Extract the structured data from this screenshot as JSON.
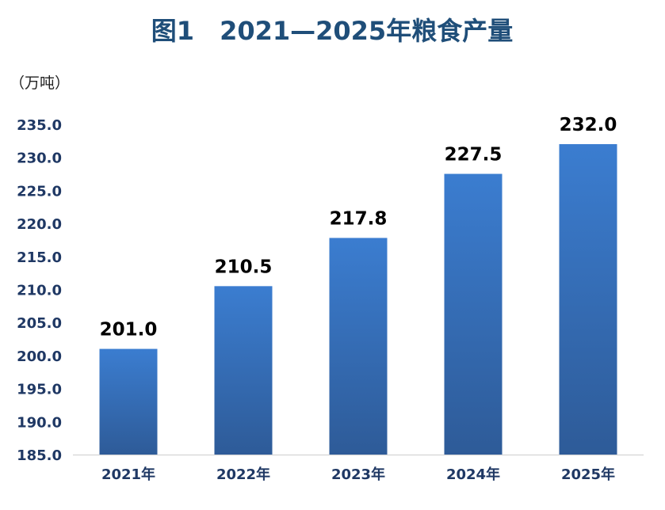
{
  "chart_data": {
    "type": "bar",
    "title": "图1　2021—2025年粮食产量",
    "ylabel": "（万吨）",
    "xlabel": "",
    "categories": [
      "2021年",
      "2022年",
      "2023年",
      "2024年",
      "2025年"
    ],
    "values": [
      201.0,
      210.5,
      217.8,
      227.5,
      232.0
    ],
    "data_labels": [
      "201.0",
      "210.5",
      "217.8",
      "227.5",
      "232.0"
    ],
    "ylim": [
      185.0,
      235.0
    ],
    "yticks": [
      "185.0",
      "190.0",
      "195.0",
      "200.0",
      "205.0",
      "210.0",
      "215.0",
      "220.0",
      "225.0",
      "230.0",
      "235.0"
    ],
    "grid": false,
    "legend": "none"
  },
  "colors": {
    "title": "#1f4e79",
    "tick_text": "#1f3864",
    "bar_top": "#3b7dd0",
    "bar_bottom": "#2e5b98",
    "data_label": "#000000",
    "axis_line": "#d9d9d9"
  }
}
